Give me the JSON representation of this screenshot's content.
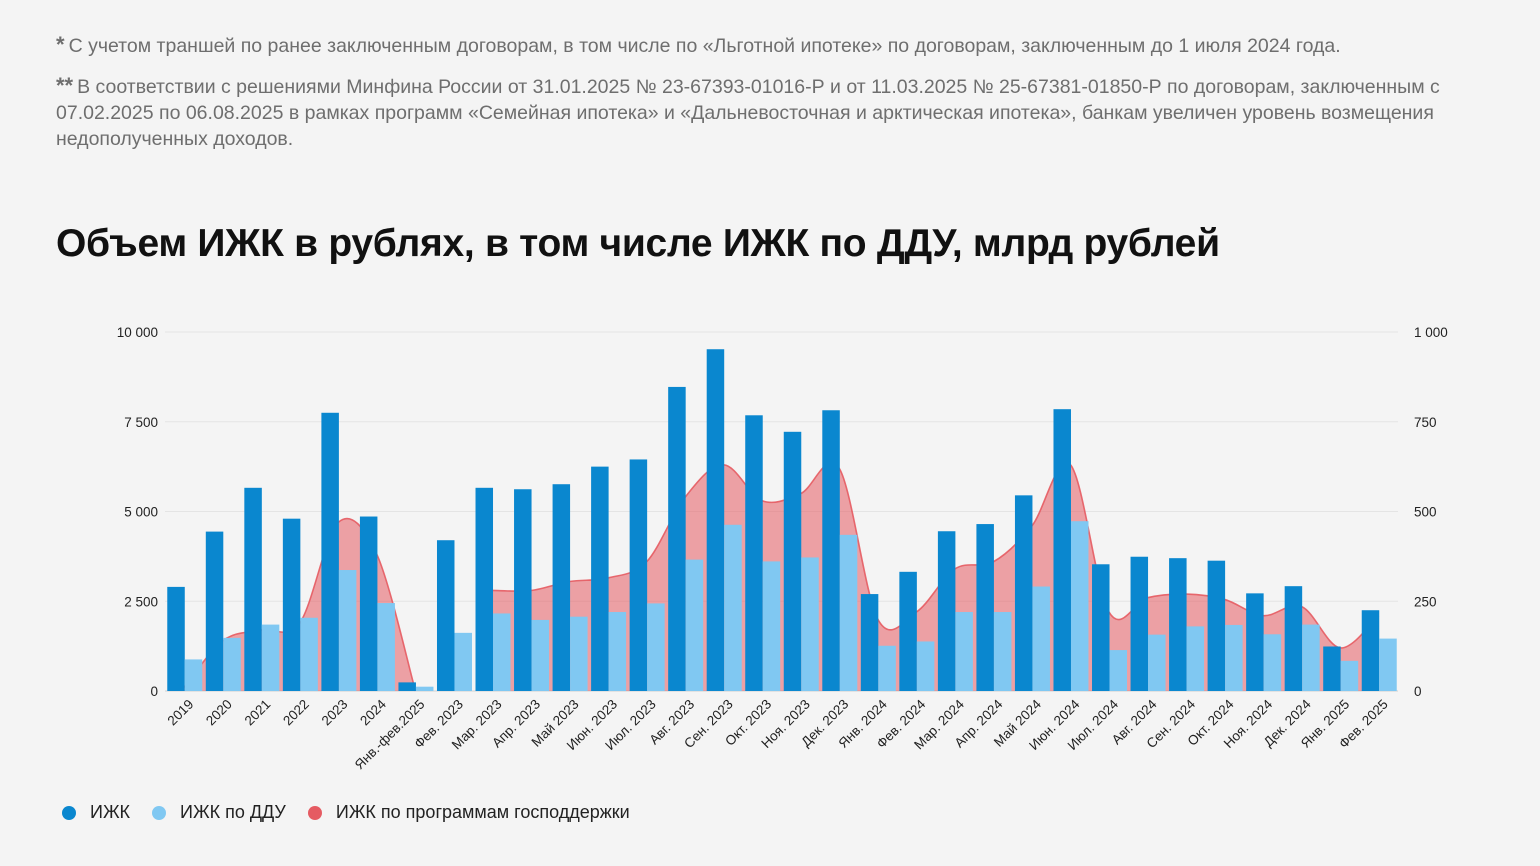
{
  "notes": [
    {
      "marker": "*",
      "text": "С учетом траншей по ранее заключенным договорам, в том числе по «Льготной ипотеке» по договорам, заключенным до 1 июля 2024 года."
    },
    {
      "marker": "**",
      "text": "В соответствии с решениями Минфина России от 31.01.2025 № 23-67393-01016-Р и от 11.03.2025 № 25-67381-01850-Р по договорам, заключенным с 07.02.2025 по 06.08.2025 в рамках программ «Семейная ипотека» и «Дальневосточная и арктическая ипотека», банкам увеличен уровень возмещения недополученных доходов."
    }
  ],
  "chart_data": {
    "type": "bar",
    "title": "Объем ИЖК в рублях, в том числе ИЖК по ДДУ, млрд рублей",
    "categories": [
      "2019",
      "2020",
      "2021",
      "2022",
      "2023",
      "2024",
      "Янв.-фев.2025",
      "Фев. 2023",
      "Мар. 2023",
      "Апр. 2023",
      "Май 2023",
      "Июн. 2023",
      "Июл. 2023",
      "Авг. 2023",
      "Сен. 2023",
      "Окт. 2023",
      "Ноя. 2023",
      "Дек. 2023",
      "Янв. 2024",
      "Фев. 2024",
      "Мар. 2024",
      "Апр. 2024",
      "Май 2024",
      "Июн. 2024",
      "Июл. 2024",
      "Авг. 2024",
      "Сен. 2024",
      "Окт. 2024",
      "Ноя. 2024",
      "Дек. 2024",
      "Янв. 2025",
      "Фев. 2025"
    ],
    "y_left": {
      "min": 0,
      "max": 10000,
      "ticks": [
        0,
        2500,
        5000,
        7500,
        10000
      ],
      "tick_labels": [
        "0",
        "2 500",
        "5 000",
        "7 500",
        "10 000"
      ]
    },
    "y_right": {
      "min": 0,
      "max": 1000,
      "ticks": [
        0,
        250,
        500,
        750,
        1000
      ],
      "tick_labels": [
        "0",
        "250",
        "500",
        "750",
        "1 000"
      ]
    },
    "grid": true,
    "legend_position": "bottom-left",
    "series": [
      {
        "name": "ИЖК",
        "kind": "bar",
        "axis": "left",
        "color": "#0a87cf",
        "values": [
          2900,
          4440,
          5660,
          4800,
          7750,
          4860,
          240,
          4200,
          5660,
          5620,
          5760,
          6250,
          6450,
          8470,
          9520,
          7680,
          7220,
          7820,
          2700,
          3320,
          4450,
          4650,
          5450,
          7850,
          3530,
          3740,
          3700,
          3630,
          2720,
          2920,
          1240,
          2250
        ]
      },
      {
        "name": "ИЖК по ДДУ",
        "kind": "bar",
        "axis": "left",
        "color": "#80c8f2",
        "values": [
          880,
          1480,
          1850,
          2040,
          3370,
          2450,
          120,
          1620,
          2160,
          1980,
          2070,
          2200,
          2440,
          3660,
          4630,
          3610,
          3720,
          4350,
          1260,
          1380,
          2200,
          2200,
          2910,
          4730,
          1140,
          1570,
          1800,
          1840,
          1580,
          1850,
          840,
          1460
        ]
      },
      {
        "name": "ИЖК по программам господдержки",
        "kind": "area",
        "axis": "right",
        "color": "#e55b62",
        "values": [
          10,
          140,
          170,
          190,
          470,
          380,
          0,
          null,
          280,
          280,
          305,
          315,
          360,
          540,
          630,
          530,
          550,
          620,
          200,
          220,
          340,
          360,
          460,
          630,
          220,
          260,
          270,
          255,
          210,
          235,
          120,
          210
        ]
      }
    ]
  }
}
